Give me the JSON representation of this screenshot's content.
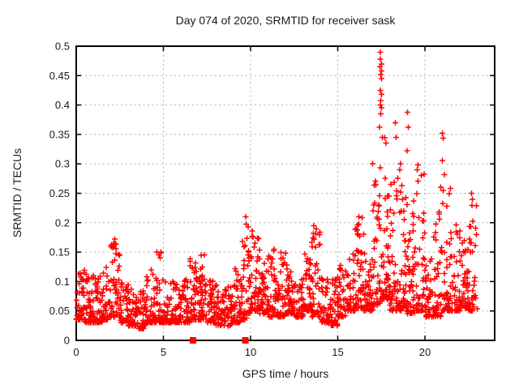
{
  "chart_data": {
    "type": "scatter",
    "title": "Day 074 of 2020, SRMTID for receiver sask",
    "xlabel": "GPS time / hours",
    "ylabel": "SRMTID / TECUs",
    "xlim": [
      0,
      24
    ],
    "ylim": [
      0,
      0.5
    ],
    "x_ticks": [
      [
        0,
        "0"
      ],
      [
        5,
        "5"
      ],
      [
        10,
        "10"
      ],
      [
        15,
        "15"
      ],
      [
        20,
        "20"
      ]
    ],
    "y_ticks": [
      [
        0,
        "0"
      ],
      [
        0.05,
        "0.05"
      ],
      [
        0.1,
        "0.1"
      ],
      [
        0.15,
        "0.15"
      ],
      [
        0.2,
        "0.2"
      ],
      [
        0.25,
        "0.25"
      ],
      [
        0.3,
        "0.3"
      ],
      [
        0.35,
        "0.35"
      ],
      [
        0.4,
        "0.4"
      ],
      [
        0.45,
        "0.45"
      ],
      [
        0.5,
        "0.5"
      ]
    ],
    "grid": true,
    "legend": "none",
    "marker": "plus-cross",
    "marker_color": "#ff0000",
    "grid_color": "#b0b0b0",
    "border_color": "#000000",
    "seed": 74,
    "bin_width": 0.5,
    "bins_note": "each bin = [start_hour, point_count, min_value, max_value]; dense cloud hugs the min with sparse tail toward max",
    "bins": [
      [
        0.0,
        45,
        0.035,
        0.13
      ],
      [
        0.5,
        45,
        0.03,
        0.115
      ],
      [
        1.0,
        40,
        0.03,
        0.11
      ],
      [
        1.5,
        40,
        0.035,
        0.13
      ],
      [
        2.0,
        45,
        0.04,
        0.17
      ],
      [
        2.5,
        40,
        0.03,
        0.1
      ],
      [
        3.0,
        40,
        0.025,
        0.095
      ],
      [
        3.5,
        38,
        0.02,
        0.09
      ],
      [
        4.0,
        40,
        0.03,
        0.12
      ],
      [
        4.5,
        42,
        0.03,
        0.155
      ],
      [
        5.0,
        40,
        0.03,
        0.1
      ],
      [
        5.5,
        40,
        0.03,
        0.1
      ],
      [
        6.0,
        40,
        0.03,
        0.11
      ],
      [
        6.5,
        42,
        0.035,
        0.14
      ],
      [
        7.0,
        42,
        0.035,
        0.15
      ],
      [
        7.5,
        40,
        0.03,
        0.105
      ],
      [
        8.0,
        36,
        0.025,
        0.095
      ],
      [
        8.5,
        36,
        0.025,
        0.1
      ],
      [
        9.0,
        40,
        0.03,
        0.13
      ],
      [
        9.5,
        42,
        0.035,
        0.21
      ],
      [
        10.0,
        46,
        0.05,
        0.185
      ],
      [
        10.5,
        44,
        0.045,
        0.165
      ],
      [
        11.0,
        42,
        0.04,
        0.16
      ],
      [
        11.5,
        40,
        0.04,
        0.15
      ],
      [
        12.0,
        42,
        0.045,
        0.13
      ],
      [
        12.5,
        40,
        0.04,
        0.12
      ],
      [
        13.0,
        42,
        0.05,
        0.15
      ],
      [
        13.5,
        42,
        0.04,
        0.195
      ],
      [
        14.0,
        40,
        0.03,
        0.12
      ],
      [
        14.5,
        38,
        0.025,
        0.11
      ],
      [
        15.0,
        40,
        0.04,
        0.13
      ],
      [
        15.5,
        40,
        0.05,
        0.15
      ],
      [
        16.0,
        42,
        0.055,
        0.21
      ],
      [
        16.5,
        42,
        0.05,
        0.18
      ],
      [
        17.0,
        46,
        0.06,
        0.3
      ],
      [
        17.5,
        50,
        0.07,
        0.35
      ],
      [
        18.0,
        46,
        0.05,
        0.28
      ],
      [
        18.5,
        46,
        0.05,
        0.3
      ],
      [
        19.0,
        44,
        0.045,
        0.25
      ],
      [
        19.5,
        44,
        0.05,
        0.295
      ],
      [
        20.0,
        40,
        0.04,
        0.15
      ],
      [
        20.5,
        42,
        0.04,
        0.24
      ],
      [
        21.0,
        44,
        0.05,
        0.26
      ],
      [
        21.5,
        40,
        0.05,
        0.2
      ],
      [
        22.0,
        40,
        0.055,
        0.18
      ],
      [
        22.5,
        40,
        0.05,
        0.23
      ]
    ],
    "outliers": [
      [
        17.45,
        0.49
      ],
      [
        17.45,
        0.478
      ],
      [
        17.5,
        0.47
      ],
      [
        17.42,
        0.465
      ],
      [
        17.5,
        0.458
      ],
      [
        17.47,
        0.452
      ],
      [
        17.5,
        0.445
      ],
      [
        17.45,
        0.425
      ],
      [
        17.5,
        0.418
      ],
      [
        17.47,
        0.408
      ],
      [
        17.44,
        0.4
      ],
      [
        17.5,
        0.395
      ],
      [
        17.46,
        0.385
      ],
      [
        17.4,
        0.362
      ],
      [
        17.55,
        0.345
      ],
      [
        18.3,
        0.37
      ],
      [
        18.35,
        0.345
      ],
      [
        19.0,
        0.388
      ],
      [
        19.05,
        0.362
      ],
      [
        18.97,
        0.322
      ],
      [
        21.0,
        0.352
      ],
      [
        21.05,
        0.344
      ],
      [
        21.0,
        0.306
      ],
      [
        21.12,
        0.282
      ],
      [
        22.68,
        0.25
      ],
      [
        22.72,
        0.24
      ],
      [
        16.2,
        0.21
      ],
      [
        16.22,
        0.198
      ],
      [
        9.72,
        0.21
      ],
      [
        9.75,
        0.198
      ],
      [
        10.1,
        0.186
      ],
      [
        13.62,
        0.195
      ],
      [
        13.6,
        0.182
      ],
      [
        2.2,
        0.172
      ],
      [
        2.24,
        0.163
      ],
      [
        19.6,
        0.298
      ],
      [
        19.55,
        0.29
      ],
      [
        20.9,
        0.26
      ],
      [
        17.0,
        0.3
      ],
      [
        18.6,
        0.3
      ],
      [
        18.55,
        0.29
      ]
    ],
    "axis_markers": {
      "shape": "filled-square",
      "color": "#ff0000",
      "y": 0,
      "x": [
        6.7,
        9.7
      ]
    }
  }
}
